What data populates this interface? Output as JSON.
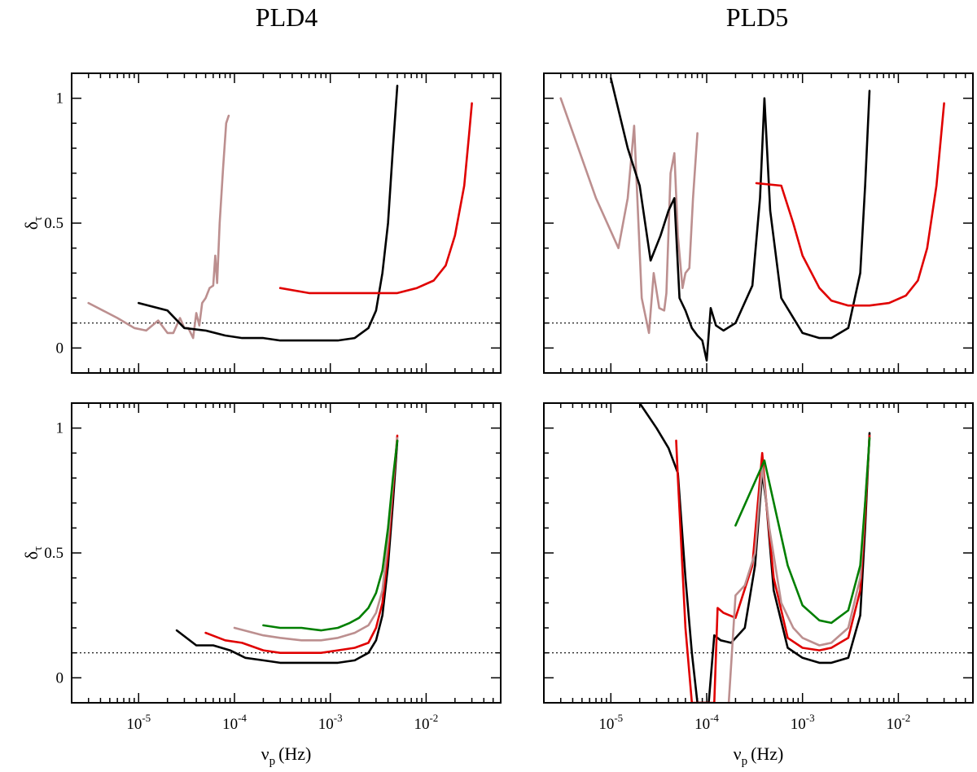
{
  "figure": {
    "column_titles": [
      "PLD4",
      "PLD5"
    ],
    "ylabel": "δ",
    "ylabel_sub": "τ",
    "xlabel": "ν",
    "xlabel_sub": "p",
    "xlabel_unit": "(Hz)"
  },
  "colors": {
    "black": "#000000",
    "rosybrown": "#bc8f8f",
    "red": "#e00000",
    "green": "#007f00"
  },
  "chart_data": [
    {
      "type": "line",
      "panel": "top-left",
      "column": "PLD4",
      "xscale": "log",
      "xlim": [
        2e-06,
        0.06
      ],
      "ylim": [
        -0.1,
        1.1
      ],
      "yticks": [
        0,
        0.5,
        1
      ],
      "xticks": [
        1e-05,
        0.0001,
        0.001,
        0.01
      ],
      "reference_line": 0.1,
      "series": [
        {
          "color": "rosybrown",
          "x": [
            3e-06,
            6e-06,
            9e-06,
            1.2e-05,
            1.6e-05,
            2e-05,
            2.3e-05,
            2.7e-05,
            3e-05,
            3.3e-05,
            3.7e-05,
            4e-05,
            4.3e-05,
            4.6e-05,
            5e-05,
            5.5e-05,
            6e-05,
            6.3e-05,
            6.6e-05,
            7e-05,
            7.6e-05,
            8.2e-05,
            8.7e-05
          ],
          "y": [
            0.18,
            0.12,
            0.08,
            0.07,
            0.11,
            0.06,
            0.06,
            0.12,
            0.08,
            0.08,
            0.04,
            0.14,
            0.09,
            0.18,
            0.2,
            0.24,
            0.25,
            0.37,
            0.26,
            0.5,
            0.72,
            0.9,
            0.93
          ]
        },
        {
          "color": "black",
          "x": [
            1e-05,
            2e-05,
            3e-05,
            5e-05,
            8e-05,
            0.00012,
            0.0002,
            0.0003,
            0.0005,
            0.0008,
            0.0012,
            0.0018,
            0.0025,
            0.003,
            0.0035,
            0.004,
            0.0045,
            0.005
          ],
          "y": [
            0.18,
            0.15,
            0.08,
            0.07,
            0.05,
            0.04,
            0.04,
            0.03,
            0.03,
            0.03,
            0.03,
            0.04,
            0.08,
            0.15,
            0.3,
            0.5,
            0.8,
            1.05
          ]
        },
        {
          "color": "red",
          "x": [
            0.0003,
            0.0006,
            0.001,
            0.002,
            0.003,
            0.005,
            0.008,
            0.012,
            0.016,
            0.02,
            0.025,
            0.028,
            0.03
          ],
          "y": [
            0.24,
            0.22,
            0.22,
            0.22,
            0.22,
            0.22,
            0.24,
            0.27,
            0.33,
            0.45,
            0.65,
            0.85,
            0.98
          ]
        }
      ]
    },
    {
      "type": "line",
      "panel": "top-right",
      "column": "PLD5",
      "xscale": "log",
      "xlim": [
        2e-06,
        0.06
      ],
      "ylim": [
        -0.1,
        1.1
      ],
      "yticks": [
        0,
        0.5,
        1
      ],
      "xticks": [
        1e-05,
        0.0001,
        0.001,
        0.01
      ],
      "reference_line": 0.1,
      "series": [
        {
          "color": "rosybrown",
          "x": [
            3e-06,
            7e-06,
            1.2e-05,
            1.5e-05,
            1.75e-05,
            2.1e-05,
            2.5e-05,
            2.8e-05,
            3.2e-05,
            3.6e-05,
            3.8e-05,
            4.2e-05,
            4.6e-05,
            5e-05,
            5.6e-05,
            6e-05,
            6.6e-05,
            7.2e-05,
            8e-05
          ],
          "y": [
            1.0,
            0.6,
            0.4,
            0.6,
            0.89,
            0.2,
            0.06,
            0.3,
            0.16,
            0.15,
            0.22,
            0.7,
            0.78,
            0.45,
            0.24,
            0.3,
            0.32,
            0.6,
            0.86
          ]
        },
        {
          "color": "black",
          "x": [
            1e-05,
            1.5e-05,
            2e-05,
            2.6e-05,
            3.3e-05,
            4e-05,
            4.6e-05,
            5.2e-05,
            6e-05,
            7e-05,
            8e-05,
            9e-05,
            0.0001,
            0.00011,
            0.000125,
            0.00015,
            0.0002,
            0.0003,
            0.00036,
            0.0004,
            0.00046,
            0.0006,
            0.001,
            0.0015,
            0.002,
            0.003,
            0.004,
            0.0045,
            0.005
          ],
          "y": [
            1.08,
            0.8,
            0.65,
            0.35,
            0.45,
            0.55,
            0.6,
            0.2,
            0.15,
            0.08,
            0.05,
            0.03,
            -0.05,
            0.16,
            0.09,
            0.07,
            0.1,
            0.25,
            0.6,
            1.0,
            0.55,
            0.2,
            0.06,
            0.04,
            0.04,
            0.08,
            0.3,
            0.65,
            1.03
          ]
        },
        {
          "color": "red",
          "x": [
            0.00033,
            0.0006,
            0.0008,
            0.001,
            0.0015,
            0.002,
            0.003,
            0.005,
            0.008,
            0.012,
            0.016,
            0.02,
            0.025,
            0.03
          ],
          "y": [
            0.66,
            0.65,
            0.5,
            0.37,
            0.24,
            0.19,
            0.17,
            0.17,
            0.18,
            0.21,
            0.27,
            0.4,
            0.65,
            0.98
          ]
        }
      ]
    },
    {
      "type": "line",
      "panel": "bottom-left",
      "column": "PLD4",
      "xscale": "log",
      "xlim": [
        2e-06,
        0.06
      ],
      "ylim": [
        -0.1,
        1.1
      ],
      "yticks": [
        0,
        0.5,
        1
      ],
      "xticks": [
        1e-05,
        0.0001,
        0.001,
        0.01
      ],
      "reference_line": 0.1,
      "series": [
        {
          "color": "black",
          "x": [
            2.5e-05,
            4e-05,
            6e-05,
            9e-05,
            0.00013,
            0.0002,
            0.0003,
            0.0005,
            0.0008,
            0.0012,
            0.0018,
            0.0025,
            0.003,
            0.0035,
            0.004,
            0.0045,
            0.005
          ],
          "y": [
            0.19,
            0.13,
            0.13,
            0.11,
            0.08,
            0.07,
            0.06,
            0.06,
            0.06,
            0.06,
            0.07,
            0.1,
            0.15,
            0.25,
            0.45,
            0.7,
            0.95
          ]
        },
        {
          "color": "red",
          "x": [
            5e-05,
            8e-05,
            0.00012,
            0.0002,
            0.0003,
            0.0005,
            0.0008,
            0.0012,
            0.0018,
            0.0025,
            0.003,
            0.0035,
            0.004,
            0.0045,
            0.005
          ],
          "y": [
            0.18,
            0.15,
            0.14,
            0.11,
            0.1,
            0.1,
            0.1,
            0.11,
            0.12,
            0.14,
            0.2,
            0.3,
            0.5,
            0.75,
            0.97
          ]
        },
        {
          "color": "rosybrown",
          "x": [
            0.0001,
            0.0002,
            0.0003,
            0.0005,
            0.0008,
            0.0012,
            0.0018,
            0.0025,
            0.003,
            0.0035,
            0.004,
            0.0045,
            0.005
          ],
          "y": [
            0.2,
            0.17,
            0.16,
            0.15,
            0.15,
            0.16,
            0.18,
            0.21,
            0.26,
            0.35,
            0.55,
            0.78,
            0.96
          ]
        },
        {
          "color": "green",
          "x": [
            0.0002,
            0.0003,
            0.0005,
            0.0008,
            0.0012,
            0.0016,
            0.002,
            0.0025,
            0.003,
            0.0035,
            0.004,
            0.0045,
            0.005
          ],
          "y": [
            0.21,
            0.2,
            0.2,
            0.19,
            0.2,
            0.22,
            0.24,
            0.28,
            0.34,
            0.43,
            0.6,
            0.8,
            0.95
          ]
        }
      ]
    },
    {
      "type": "line",
      "panel": "bottom-right",
      "column": "PLD5",
      "xscale": "log",
      "xlim": [
        2e-06,
        0.06
      ],
      "ylim": [
        -0.1,
        1.1
      ],
      "yticks": [
        0,
        0.5,
        1
      ],
      "xticks": [
        1e-05,
        0.0001,
        0.001,
        0.01
      ],
      "reference_line": 0.1,
      "series": [
        {
          "color": "black",
          "x": [
            2e-05,
            3e-05,
            4e-05,
            5e-05,
            6e-05,
            7e-05,
            8e-05,
            9e-05,
            0.000105,
            0.00012,
            0.00014,
            0.00018,
            0.00025,
            0.00032,
            0.00038,
            0.00042,
            0.0005,
            0.0007,
            0.001,
            0.0015,
            0.002,
            0.003,
            0.004,
            0.0045,
            0.005
          ],
          "y": [
            1.1,
            1.0,
            0.92,
            0.82,
            0.4,
            0.1,
            -0.1,
            -0.1,
            -0.1,
            0.17,
            0.15,
            0.14,
            0.2,
            0.45,
            0.82,
            0.7,
            0.35,
            0.12,
            0.08,
            0.06,
            0.06,
            0.08,
            0.25,
            0.6,
            0.98
          ]
        },
        {
          "color": "red",
          "x": [
            4.8e-05,
            5e-05,
            6e-05,
            7e-05,
            0.00012,
            0.00013,
            0.00015,
            0.0002,
            0.0003,
            0.00038,
            0.00042,
            0.0005,
            0.0007,
            0.001,
            0.0015,
            0.002,
            0.003,
            0.004,
            0.0045,
            0.005
          ],
          "y": [
            0.95,
            0.8,
            0.2,
            -0.1,
            -0.1,
            0.28,
            0.26,
            0.24,
            0.45,
            0.9,
            0.7,
            0.4,
            0.16,
            0.12,
            0.11,
            0.12,
            0.16,
            0.35,
            0.65,
            0.97
          ]
        },
        {
          "color": "rosybrown",
          "x": [
            0.00017,
            0.0002,
            0.00025,
            0.00032,
            0.00038,
            0.00045,
            0.0006,
            0.0008,
            0.001,
            0.0015,
            0.002,
            0.003,
            0.004,
            0.0045,
            0.005
          ],
          "y": [
            -0.1,
            0.33,
            0.37,
            0.5,
            0.85,
            0.6,
            0.3,
            0.2,
            0.16,
            0.13,
            0.14,
            0.2,
            0.4,
            0.7,
            0.96
          ]
        },
        {
          "color": "green",
          "x": [
            0.0002,
            0.0004,
            0.0007,
            0.001,
            0.0015,
            0.002,
            0.003,
            0.004,
            0.0045,
            0.005
          ],
          "y": [
            0.61,
            0.87,
            0.45,
            0.29,
            0.23,
            0.22,
            0.27,
            0.45,
            0.7,
            0.96
          ]
        }
      ]
    }
  ]
}
